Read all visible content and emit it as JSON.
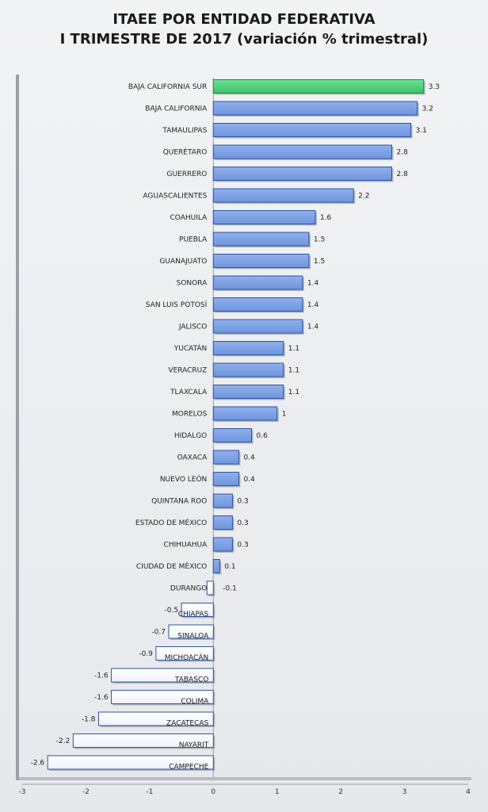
{
  "chart_data": {
    "type": "bar",
    "orientation": "horizontal",
    "title_lines": [
      "ITAEE POR ENTIDAD FEDERATIVA",
      "I TRIMESTRE DE 2017 (variación % trimestral)"
    ],
    "categories": [
      "BAJA CALIFORNIA SUR",
      "BAJA CALIFORNIA",
      "TAMAULIPAS",
      "QUERÉTARO",
      "GUERRERO",
      "AGUASCALIENTES",
      "COAHUILA",
      "PUEBLA",
      "GUANAJUATO",
      "SONORA",
      "SAN LUIS POTOSÍ",
      "JALISCO",
      "YUCATÁN",
      "VERACRUZ",
      "TLAXCALA",
      "MORELOS",
      "HIDALGO",
      "OAXACA",
      "NUEVO LEÓN",
      "QUINTANA ROO",
      "ESTADO DE MÉXICO",
      "CHIHUAHUA",
      "CIUDAD DE MÉXICO",
      "DURANGO",
      "CHIAPAS",
      "SINALOA",
      "MICHOACÁN",
      "TABASCO",
      "COLIMA",
      "ZACATECAS",
      "NAYARIT",
      "CAMPECHE"
    ],
    "values": [
      3.3,
      3.2,
      3.1,
      2.8,
      2.8,
      2.2,
      1.6,
      1.5,
      1.5,
      1.4,
      1.4,
      1.4,
      1.1,
      1.1,
      1.1,
      1,
      0.6,
      0.4,
      0.4,
      0.3,
      0.3,
      0.3,
      0.1,
      -0.1,
      -0.5,
      -0.7,
      -0.9,
      -1.6,
      -1.6,
      -1.8,
      -2.2,
      -2.6
    ],
    "value_labels": [
      "3.3",
      "3.2",
      "3.1",
      "2.8",
      "2.8",
      "2.2",
      "1.6",
      "1.5",
      "1.5",
      "1.4",
      "1.4",
      "1.4",
      "1.1",
      "1.1",
      "1.1",
      "1",
      "0.6",
      "0.4",
      "0.4",
      "0.3",
      "0.3",
      "0.3",
      "0.1",
      "-0.1",
      "-0.5",
      "-0.7",
      "-0.9",
      "-1.6",
      "-1.6",
      "-1.8",
      "-2.2",
      "-2.6"
    ],
    "xlim": [
      -3,
      4
    ],
    "x_ticks": [
      -3,
      -2,
      -1,
      0,
      1,
      2,
      3,
      4
    ],
    "grid": false,
    "legend": "none",
    "colors": {
      "highlight": "#3cc068",
      "positive": "#6f95dd",
      "negative": "#ffffff",
      "border": "#2f55a0"
    }
  }
}
